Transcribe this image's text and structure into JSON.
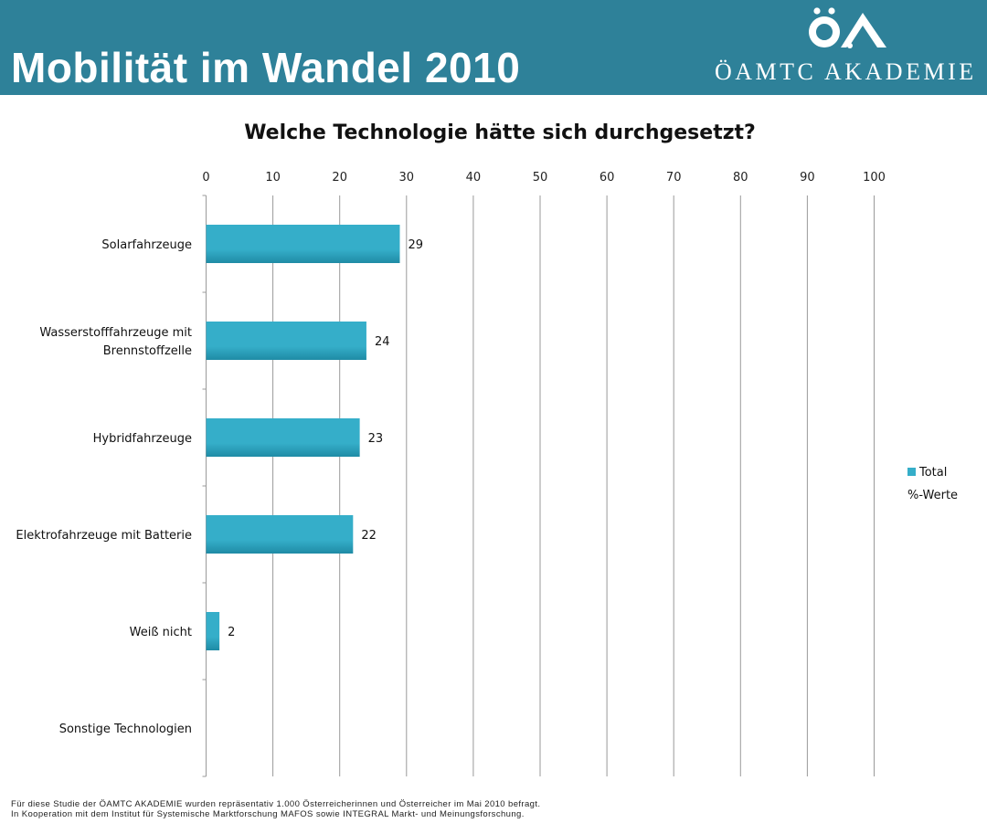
{
  "header": {
    "title": "Mobilität im Wandel 2010",
    "logo_mark": "ÖA",
    "logo_text": "ÖAMTC AKADEMIE"
  },
  "colors": {
    "header_bg": "#2e8199",
    "bar": "#35aec9",
    "bar_dark": "#1f8ba5",
    "grid": "#9a9a9a"
  },
  "chart_data": {
    "type": "bar",
    "orientation": "horizontal",
    "title": "Welche Technologie hätte sich durchgesetzt?",
    "categories": [
      [
        "Solarfahrzeuge"
      ],
      [
        "Wasserstofffahrzeuge mit",
        "Brennstoffzelle"
      ],
      [
        "Hybridfahrzeuge"
      ],
      [
        "Elektrofahrzeuge mit Batterie"
      ],
      [
        "Weiß nicht"
      ],
      [
        "Sonstige Technologien"
      ]
    ],
    "series": [
      {
        "name": "Total",
        "values": [
          29,
          24,
          23,
          22,
          2,
          null
        ]
      }
    ],
    "data_labels": [
      "29",
      "24",
      "23",
      "22",
      "2",
      ""
    ],
    "xlim": [
      0,
      100
    ],
    "xticks": [
      0,
      10,
      20,
      30,
      40,
      50,
      60,
      70,
      80,
      90,
      100
    ],
    "grid": true,
    "legend": {
      "entries": [
        "Total"
      ],
      "subtitle": "%-Werte",
      "position": "right"
    }
  },
  "footer": {
    "line1": "Für diese Studie der ÖAMTC AKADEMIE wurden repräsentativ 1.000 Österreicherinnen und Österreicher im Mai 2010 befragt.",
    "line2": "In Kooperation mit dem Institut für Systemische Marktforschung MAFOS sowie INTEGRAL Markt- und Meinungsforschung."
  }
}
